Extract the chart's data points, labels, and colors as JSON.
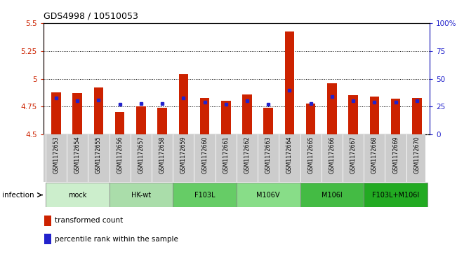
{
  "title": "GDS4998 / 10510053",
  "samples": [
    "GSM1172653",
    "GSM1172654",
    "GSM1172655",
    "GSM1172656",
    "GSM1172657",
    "GSM1172658",
    "GSM1172659",
    "GSM1172660",
    "GSM1172661",
    "GSM1172662",
    "GSM1172663",
    "GSM1172664",
    "GSM1172665",
    "GSM1172666",
    "GSM1172667",
    "GSM1172668",
    "GSM1172669",
    "GSM1172670"
  ],
  "transformed_counts": [
    4.88,
    4.87,
    4.92,
    4.7,
    4.75,
    4.74,
    5.04,
    4.83,
    4.8,
    4.86,
    4.74,
    5.42,
    4.78,
    4.96,
    4.85,
    4.84,
    4.82,
    4.83
  ],
  "percentile_ranks": [
    33,
    30,
    31,
    27,
    28,
    28,
    33,
    29,
    27,
    30,
    27,
    40,
    28,
    34,
    30,
    29,
    29,
    30
  ],
  "ymin": 4.5,
  "ymax": 5.5,
  "yticks": [
    4.5,
    4.75,
    5.0,
    5.25,
    5.5
  ],
  "ytick_labels": [
    "4.5",
    "4.75",
    "5",
    "5.25",
    "5.5"
  ],
  "y2min": 0,
  "y2max": 100,
  "y2ticks": [
    0,
    25,
    50,
    75,
    100
  ],
  "y2tick_labels": [
    "0",
    "25",
    "50",
    "75",
    "100%"
  ],
  "groups": [
    {
      "label": "mock",
      "start": 0,
      "end": 3,
      "color": "#cceecc"
    },
    {
      "label": "HK-wt",
      "start": 3,
      "end": 6,
      "color": "#aaddaa"
    },
    {
      "label": "F103L",
      "start": 6,
      "end": 9,
      "color": "#66cc66"
    },
    {
      "label": "M106V",
      "start": 9,
      "end": 12,
      "color": "#88dd88"
    },
    {
      "label": "M106I",
      "start": 12,
      "end": 15,
      "color": "#44bb44"
    },
    {
      "label": "F103L+M106I",
      "start": 15,
      "end": 18,
      "color": "#22aa22"
    }
  ],
  "bar_color": "#cc2200",
  "percentile_color": "#2222cc",
  "bar_width": 0.45,
  "sample_bg_color": "#cccccc",
  "legend_items": [
    {
      "color": "#cc2200",
      "label": "transformed count"
    },
    {
      "color": "#2222cc",
      "label": "percentile rank within the sample"
    }
  ],
  "fig_width": 6.51,
  "fig_height": 3.63,
  "dpi": 100
}
